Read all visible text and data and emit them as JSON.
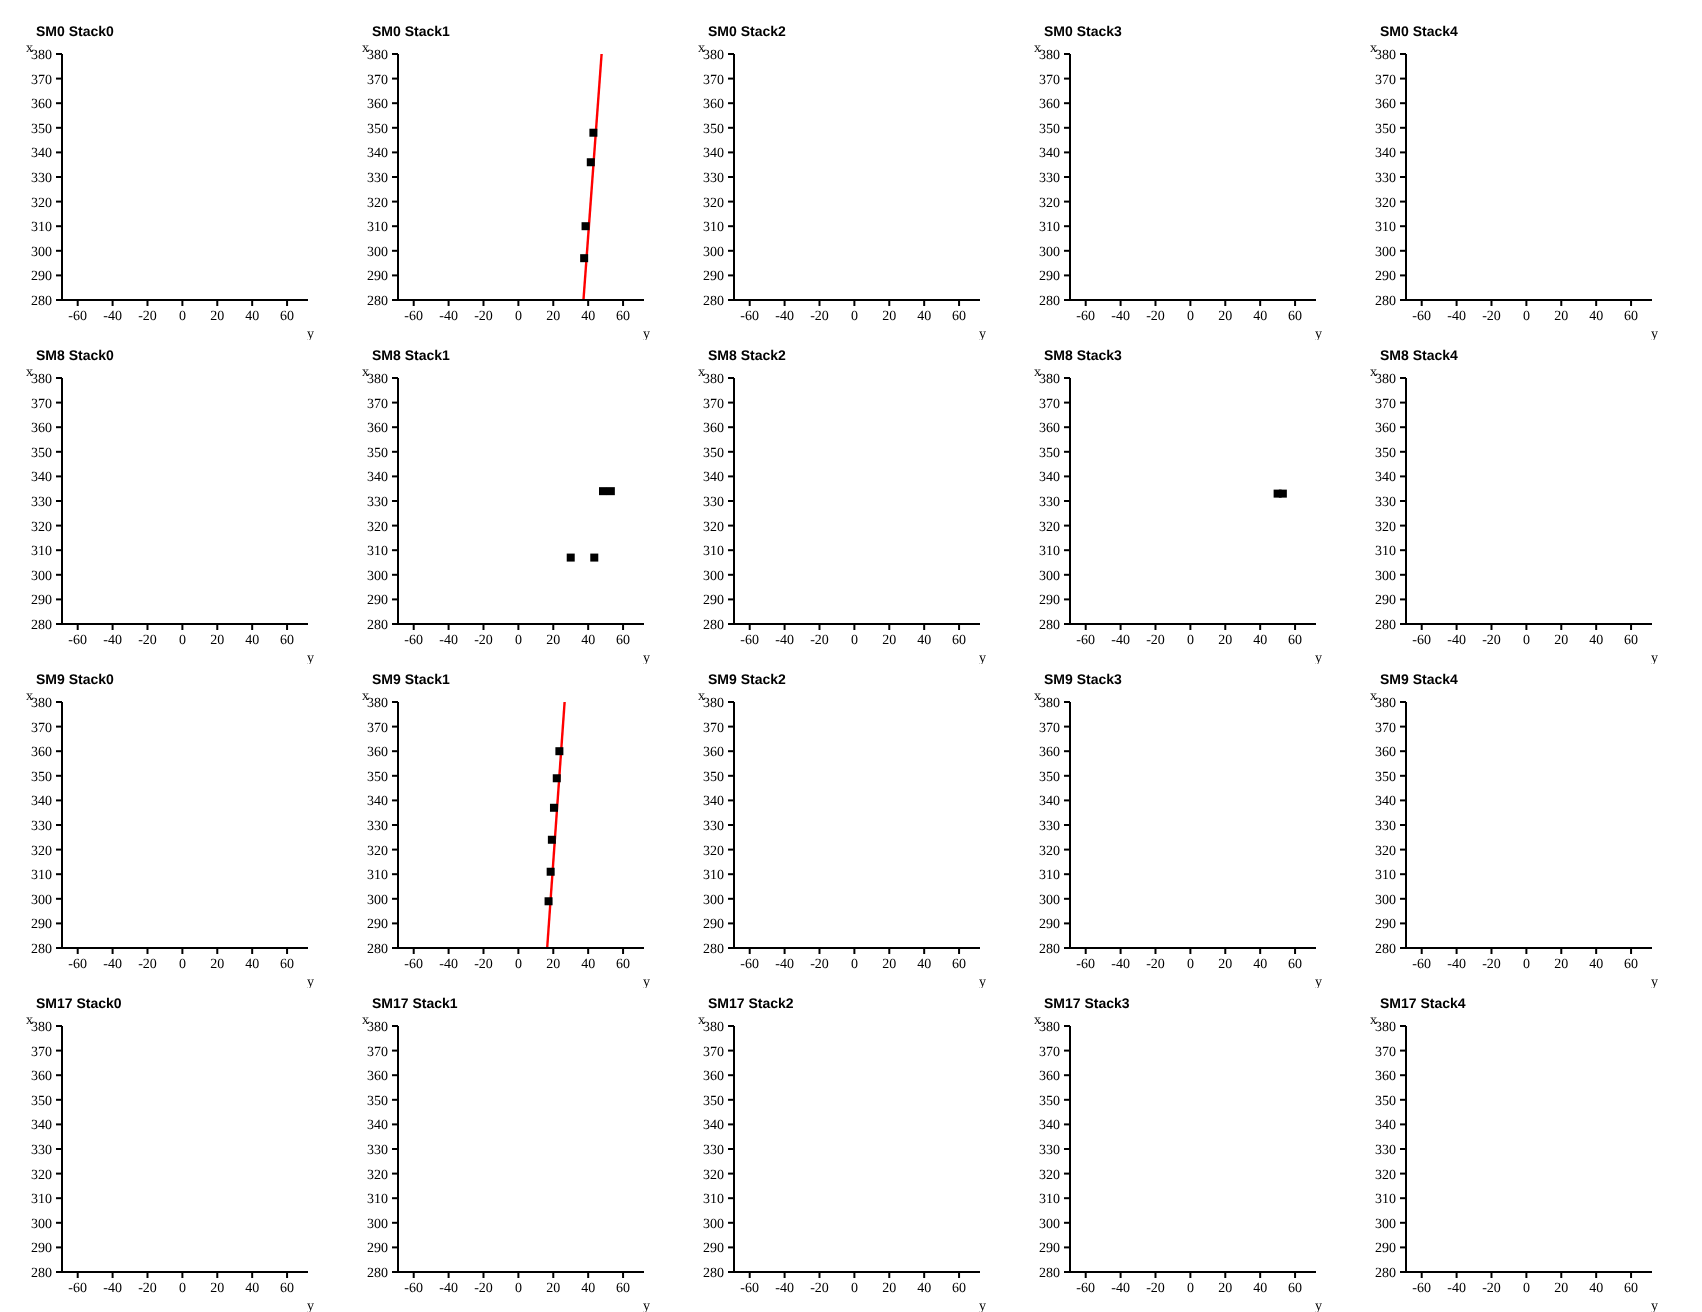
{
  "chart_data": [
    {
      "type": "scatter",
      "title": "SM0 Stack0",
      "xlabel": "y",
      "ylabel": "x",
      "xlim": [
        -69,
        72
      ],
      "ylim": [
        280,
        380
      ],
      "xticks": [
        -60,
        -40,
        -20,
        0,
        20,
        40,
        60
      ],
      "yticks": [
        280,
        290,
        300,
        310,
        320,
        330,
        340,
        350,
        360,
        370,
        380
      ]
    },
    {
      "type": "scatter",
      "title": "SM0 Stack1",
      "xlabel": "y",
      "ylabel": "x",
      "xlim": [
        -69,
        72
      ],
      "ylim": [
        280,
        380
      ],
      "xticks": [
        -60,
        -40,
        -20,
        0,
        20,
        40,
        60
      ],
      "yticks": [
        280,
        290,
        300,
        310,
        320,
        330,
        340,
        350,
        360,
        370,
        380
      ],
      "series": [
        {
          "type": "scatter",
          "color": "#000000",
          "marker": "square",
          "x": [
            43,
            41.5,
            38.5,
            37.7
          ],
          "values": [
            348,
            336,
            310,
            297
          ]
        },
        {
          "type": "line",
          "color": "#ff0000",
          "marker": "none",
          "x": [
            37.3,
            47.7
          ],
          "values": [
            280,
            380
          ]
        }
      ]
    },
    {
      "type": "scatter",
      "title": "SM0 Stack2",
      "xlabel": "y",
      "ylabel": "x",
      "xlim": [
        -69,
        72
      ],
      "ylim": [
        280,
        380
      ],
      "xticks": [
        -60,
        -40,
        -20,
        0,
        20,
        40,
        60
      ],
      "yticks": [
        280,
        290,
        300,
        310,
        320,
        330,
        340,
        350,
        360,
        370,
        380
      ]
    },
    {
      "type": "scatter",
      "title": "SM0 Stack3",
      "xlabel": "y",
      "ylabel": "x",
      "xlim": [
        -69,
        72
      ],
      "ylim": [
        280,
        380
      ],
      "xticks": [
        -60,
        -40,
        -20,
        0,
        20,
        40,
        60
      ],
      "yticks": [
        280,
        290,
        300,
        310,
        320,
        330,
        340,
        350,
        360,
        370,
        380
      ]
    },
    {
      "type": "scatter",
      "title": "SM0 Stack4",
      "xlabel": "y",
      "ylabel": "x",
      "xlim": [
        -69,
        72
      ],
      "ylim": [
        280,
        380
      ],
      "xticks": [
        -60,
        -40,
        -20,
        0,
        20,
        40,
        60
      ],
      "yticks": [
        280,
        290,
        300,
        310,
        320,
        330,
        340,
        350,
        360,
        370,
        380
      ]
    },
    {
      "type": "scatter",
      "title": "SM8 Stack0",
      "xlabel": "y",
      "ylabel": "x",
      "xlim": [
        -69,
        72
      ],
      "ylim": [
        280,
        380
      ],
      "xticks": [
        -60,
        -40,
        -20,
        0,
        20,
        40,
        60
      ],
      "yticks": [
        280,
        290,
        300,
        310,
        320,
        330,
        340,
        350,
        360,
        370,
        380
      ]
    },
    {
      "type": "scatter",
      "title": "SM8 Stack1",
      "xlabel": "y",
      "ylabel": "x",
      "xlim": [
        -69,
        72
      ],
      "ylim": [
        280,
        380
      ],
      "xticks": [
        -60,
        -40,
        -20,
        0,
        20,
        40,
        60
      ],
      "yticks": [
        280,
        290,
        300,
        310,
        320,
        330,
        340,
        350,
        360,
        370,
        380
      ],
      "series": [
        {
          "type": "scatter",
          "color": "#000000",
          "marker": "square",
          "x": [
            30,
            43.5,
            48.5,
            53
          ],
          "values": [
            307,
            307,
            334,
            334
          ]
        }
      ]
    },
    {
      "type": "scatter",
      "title": "SM8 Stack2",
      "xlabel": "y",
      "ylabel": "x",
      "xlim": [
        -69,
        72
      ],
      "ylim": [
        280,
        380
      ],
      "xticks": [
        -60,
        -40,
        -20,
        0,
        20,
        40,
        60
      ],
      "yticks": [
        280,
        290,
        300,
        310,
        320,
        330,
        340,
        350,
        360,
        370,
        380
      ]
    },
    {
      "type": "scatter",
      "title": "SM8 Stack3",
      "xlabel": "y",
      "ylabel": "x",
      "xlim": [
        -69,
        72
      ],
      "ylim": [
        280,
        380
      ],
      "xticks": [
        -60,
        -40,
        -20,
        0,
        20,
        40,
        60
      ],
      "yticks": [
        280,
        290,
        300,
        310,
        320,
        330,
        340,
        350,
        360,
        370,
        380
      ],
      "series": [
        {
          "type": "scatter",
          "color": "#000000",
          "marker": "square",
          "x": [
            50,
            53
          ],
          "values": [
            333,
            333
          ]
        }
      ]
    },
    {
      "type": "scatter",
      "title": "SM8 Stack4",
      "xlabel": "y",
      "ylabel": "x",
      "xlim": [
        -69,
        72
      ],
      "ylim": [
        280,
        380
      ],
      "xticks": [
        -60,
        -40,
        -20,
        0,
        20,
        40,
        60
      ],
      "yticks": [
        280,
        290,
        300,
        310,
        320,
        330,
        340,
        350,
        360,
        370,
        380
      ]
    },
    {
      "type": "scatter",
      "title": "SM9 Stack0",
      "xlabel": "y",
      "ylabel": "x",
      "xlim": [
        -69,
        72
      ],
      "ylim": [
        280,
        380
      ],
      "xticks": [
        -60,
        -40,
        -20,
        0,
        20,
        40,
        60
      ],
      "yticks": [
        280,
        290,
        300,
        310,
        320,
        330,
        340,
        350,
        360,
        370,
        380
      ]
    },
    {
      "type": "scatter",
      "title": "SM9 Stack1",
      "xlabel": "y",
      "ylabel": "x",
      "xlim": [
        -69,
        72
      ],
      "ylim": [
        280,
        380
      ],
      "xticks": [
        -60,
        -40,
        -20,
        0,
        20,
        40,
        60
      ],
      "yticks": [
        280,
        290,
        300,
        310,
        320,
        330,
        340,
        350,
        360,
        370,
        380
      ],
      "series": [
        {
          "type": "scatter",
          "color": "#000000",
          "marker": "square",
          "x": [
            23.5,
            22,
            20.4,
            19.2,
            18.5,
            17.3
          ],
          "values": [
            360,
            349,
            337,
            324,
            311,
            299
          ]
        },
        {
          "type": "line",
          "color": "#ff0000",
          "marker": "none",
          "x": [
            16.5,
            26.5
          ],
          "values": [
            280,
            380
          ]
        }
      ]
    },
    {
      "type": "scatter",
      "title": "SM9 Stack2",
      "xlabel": "y",
      "ylabel": "x",
      "xlim": [
        -69,
        72
      ],
      "ylim": [
        280,
        380
      ],
      "xticks": [
        -60,
        -40,
        -20,
        0,
        20,
        40,
        60
      ],
      "yticks": [
        280,
        290,
        300,
        310,
        320,
        330,
        340,
        350,
        360,
        370,
        380
      ]
    },
    {
      "type": "scatter",
      "title": "SM9 Stack3",
      "xlabel": "y",
      "ylabel": "x",
      "xlim": [
        -69,
        72
      ],
      "ylim": [
        280,
        380
      ],
      "xticks": [
        -60,
        -40,
        -20,
        0,
        20,
        40,
        60
      ],
      "yticks": [
        280,
        290,
        300,
        310,
        320,
        330,
        340,
        350,
        360,
        370,
        380
      ]
    },
    {
      "type": "scatter",
      "title": "SM9 Stack4",
      "xlabel": "y",
      "ylabel": "x",
      "xlim": [
        -69,
        72
      ],
      "ylim": [
        280,
        380
      ],
      "xticks": [
        -60,
        -40,
        -20,
        0,
        20,
        40,
        60
      ],
      "yticks": [
        280,
        290,
        300,
        310,
        320,
        330,
        340,
        350,
        360,
        370,
        380
      ]
    },
    {
      "type": "scatter",
      "title": "SM17 Stack0",
      "xlabel": "y",
      "ylabel": "x",
      "xlim": [
        -69,
        72
      ],
      "ylim": [
        280,
        380
      ],
      "xticks": [
        -60,
        -40,
        -20,
        0,
        20,
        40,
        60
      ],
      "yticks": [
        280,
        290,
        300,
        310,
        320,
        330,
        340,
        350,
        360,
        370,
        380
      ]
    },
    {
      "type": "scatter",
      "title": "SM17 Stack1",
      "xlabel": "y",
      "ylabel": "x",
      "xlim": [
        -69,
        72
      ],
      "ylim": [
        280,
        380
      ],
      "xticks": [
        -60,
        -40,
        -20,
        0,
        20,
        40,
        60
      ],
      "yticks": [
        280,
        290,
        300,
        310,
        320,
        330,
        340,
        350,
        360,
        370,
        380
      ]
    },
    {
      "type": "scatter",
      "title": "SM17 Stack2",
      "xlabel": "y",
      "ylabel": "x",
      "xlim": [
        -69,
        72
      ],
      "ylim": [
        280,
        380
      ],
      "xticks": [
        -60,
        -40,
        -20,
        0,
        20,
        40,
        60
      ],
      "yticks": [
        280,
        290,
        300,
        310,
        320,
        330,
        340,
        350,
        360,
        370,
        380
      ]
    },
    {
      "type": "scatter",
      "title": "SM17 Stack3",
      "xlabel": "y",
      "ylabel": "x",
      "xlim": [
        -69,
        72
      ],
      "ylim": [
        280,
        380
      ],
      "xticks": [
        -60,
        -40,
        -20,
        0,
        20,
        40,
        60
      ],
      "yticks": [
        280,
        290,
        300,
        310,
        320,
        330,
        340,
        350,
        360,
        370,
        380
      ]
    },
    {
      "type": "scatter",
      "title": "SM17 Stack4",
      "xlabel": "y",
      "ylabel": "x",
      "xlim": [
        -69,
        72
      ],
      "ylim": [
        280,
        380
      ],
      "xticks": [
        -60,
        -40,
        -20,
        0,
        20,
        40,
        60
      ],
      "yticks": [
        280,
        290,
        300,
        310,
        320,
        330,
        340,
        350,
        360,
        370,
        380
      ]
    }
  ]
}
